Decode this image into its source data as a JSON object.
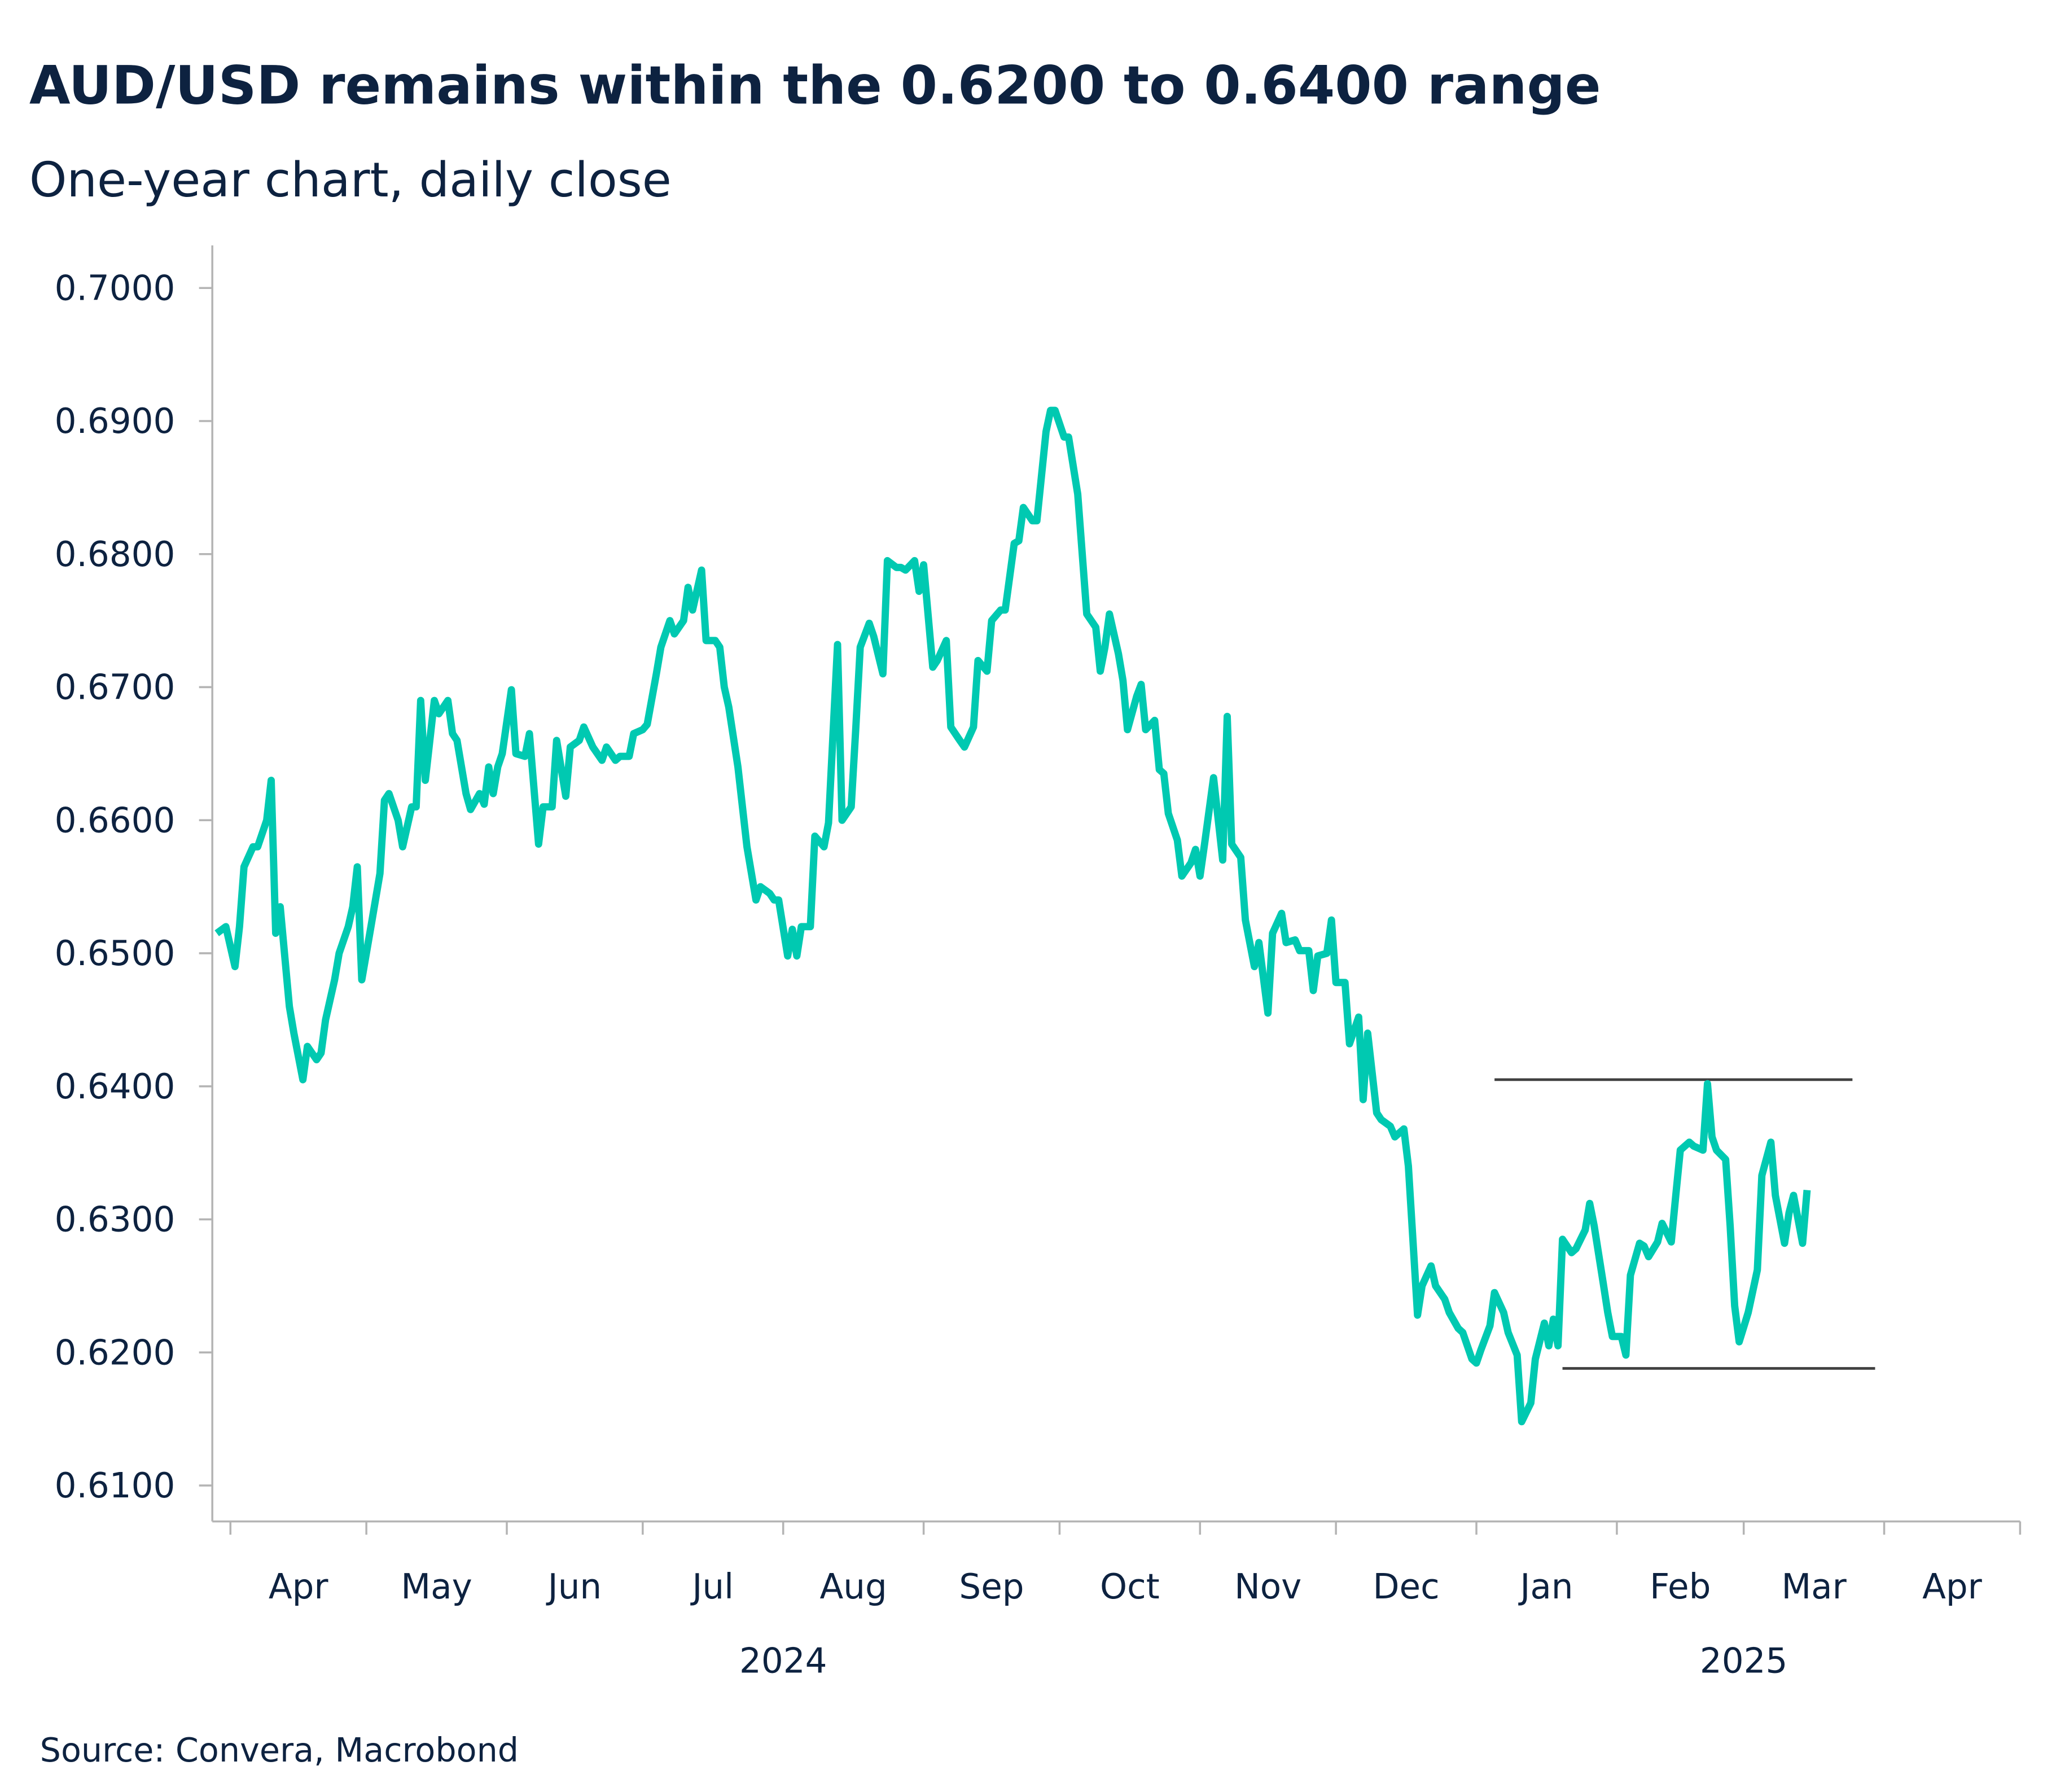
{
  "chart_data": {
    "type": "line",
    "title": "AUD/USD remains within the 0.6200 to 0.6400 range",
    "subtitle": "One-year chart, daily close",
    "source": "Source: Convera, Macrobond",
    "xlim": [
      "2024-03-28",
      "2025-05-01"
    ],
    "ylim": [
      0.6073,
      0.7032
    ],
    "y_ticks": [
      "0.6100",
      "0.6200",
      "0.6300",
      "0.6400",
      "0.6500",
      "0.6600",
      "0.6700",
      "0.6800",
      "0.6900",
      "0.7000"
    ],
    "x_month_labels": [
      {
        "label": "Apr",
        "month": "2024-04"
      },
      {
        "label": "May",
        "month": "2024-05"
      },
      {
        "label": "Jun",
        "month": "2024-06"
      },
      {
        "label": "Jul",
        "month": "2024-07"
      },
      {
        "label": "Aug",
        "month": "2024-08"
      },
      {
        "label": "Sep",
        "month": "2024-09"
      },
      {
        "label": "Oct",
        "month": "2024-10"
      },
      {
        "label": "Nov",
        "month": "2024-11"
      },
      {
        "label": "Dec",
        "month": "2024-12"
      },
      {
        "label": "Jan",
        "month": "2025-01"
      },
      {
        "label": "Feb",
        "month": "2025-02"
      },
      {
        "label": "Mar",
        "month": "2025-03"
      },
      {
        "label": "Apr",
        "month": "2025-04"
      }
    ],
    "x_year_labels": [
      {
        "label": "2024",
        "at": "2024-08-01"
      },
      {
        "label": "2025",
        "at": "2025-03-01"
      }
    ],
    "grid": false,
    "legend": "none",
    "colors": {
      "series": "#00c9b1",
      "range_lines": "#404040",
      "axis": "#b4b4b4",
      "text": "#0d2240"
    },
    "range_lines": [
      {
        "value": 0.6405,
        "from": "2025-01-05",
        "to": "2025-03-25"
      },
      {
        "value": 0.6188,
        "from": "2025-01-20",
        "to": "2025-03-30"
      }
    ],
    "points": [
      [
        "2024-03-29",
        0.6515
      ],
      [
        "2024-03-31",
        0.652
      ],
      [
        "2024-04-02",
        0.649
      ],
      [
        "2024-04-03",
        0.652
      ],
      [
        "2024-04-04",
        0.6565
      ],
      [
        "2024-04-06",
        0.658
      ],
      [
        "2024-04-07",
        0.658
      ],
      [
        "2024-04-09",
        0.66
      ],
      [
        "2024-04-10",
        0.663
      ],
      [
        "2024-04-11",
        0.6515
      ],
      [
        "2024-04-12",
        0.6535
      ],
      [
        "2024-04-14",
        0.646
      ],
      [
        "2024-04-15",
        0.644
      ],
      [
        "2024-04-17",
        0.6405
      ],
      [
        "2024-04-18",
        0.643
      ],
      [
        "2024-04-20",
        0.642
      ],
      [
        "2024-04-21",
        0.6425
      ],
      [
        "2024-04-22",
        0.645
      ],
      [
        "2024-04-24",
        0.648
      ],
      [
        "2024-04-25",
        0.65
      ],
      [
        "2024-04-27",
        0.652
      ],
      [
        "2024-04-28",
        0.6535
      ],
      [
        "2024-04-29",
        0.6565
      ],
      [
        "2024-04-30",
        0.648
      ],
      [
        "2024-05-02",
        0.652
      ],
      [
        "2024-05-04",
        0.656
      ],
      [
        "2024-05-05",
        0.6615
      ],
      [
        "2024-05-06",
        0.662
      ],
      [
        "2024-05-08",
        0.66
      ],
      [
        "2024-05-09",
        0.658
      ],
      [
        "2024-05-11",
        0.661
      ],
      [
        "2024-05-12",
        0.661
      ],
      [
        "2024-05-13",
        0.669
      ],
      [
        "2024-05-14",
        0.663
      ],
      [
        "2024-05-16",
        0.669
      ],
      [
        "2024-05-17",
        0.668
      ],
      [
        "2024-05-19",
        0.669
      ],
      [
        "2024-05-20",
        0.6665
      ],
      [
        "2024-05-21",
        0.666
      ],
      [
        "2024-05-23",
        0.662
      ],
      [
        "2024-05-24",
        0.6608
      ],
      [
        "2024-05-26",
        0.662
      ],
      [
        "2024-05-27",
        0.6612
      ],
      [
        "2024-05-28",
        0.664
      ],
      [
        "2024-05-29",
        0.662
      ],
      [
        "2024-05-30",
        0.664
      ],
      [
        "2024-05-31",
        0.665
      ],
      [
        "2024-06-02",
        0.6698
      ],
      [
        "2024-06-03",
        0.665
      ],
      [
        "2024-06-05",
        0.6648
      ],
      [
        "2024-06-06",
        0.6665
      ],
      [
        "2024-06-08",
        0.6582
      ],
      [
        "2024-06-09",
        0.661
      ],
      [
        "2024-06-11",
        0.661
      ],
      [
        "2024-06-12",
        0.666
      ],
      [
        "2024-06-14",
        0.6618
      ],
      [
        "2024-06-15",
        0.6655
      ],
      [
        "2024-06-17",
        0.666
      ],
      [
        "2024-06-18",
        0.667
      ],
      [
        "2024-06-20",
        0.6655
      ],
      [
        "2024-06-22",
        0.6645
      ],
      [
        "2024-06-23",
        0.6655
      ],
      [
        "2024-06-25",
        0.6645
      ],
      [
        "2024-06-26",
        0.6648
      ],
      [
        "2024-06-28",
        0.6648
      ],
      [
        "2024-06-29",
        0.6665
      ],
      [
        "2024-07-01",
        0.6668
      ],
      [
        "2024-07-02",
        0.6672
      ],
      [
        "2024-07-04",
        0.671
      ],
      [
        "2024-07-05",
        0.673
      ],
      [
        "2024-07-07",
        0.675
      ],
      [
        "2024-07-08",
        0.674
      ],
      [
        "2024-07-10",
        0.675
      ],
      [
        "2024-07-11",
        0.6775
      ],
      [
        "2024-07-12",
        0.6758
      ],
      [
        "2024-07-14",
        0.6788
      ],
      [
        "2024-07-15",
        0.6735
      ],
      [
        "2024-07-17",
        0.6735
      ],
      [
        "2024-07-18",
        0.673
      ],
      [
        "2024-07-19",
        0.67
      ],
      [
        "2024-07-20",
        0.6685
      ],
      [
        "2024-07-22",
        0.664
      ],
      [
        "2024-07-23",
        0.661
      ],
      [
        "2024-07-24",
        0.658
      ],
      [
        "2024-07-26",
        0.654
      ],
      [
        "2024-07-27",
        0.655
      ],
      [
        "2024-07-29",
        0.6545
      ],
      [
        "2024-07-30",
        0.654
      ],
      [
        "2024-07-31",
        0.654
      ],
      [
        "2024-08-02",
        0.6498
      ],
      [
        "2024-08-03",
        0.6518
      ],
      [
        "2024-08-04",
        0.6498
      ],
      [
        "2024-08-05",
        0.652
      ],
      [
        "2024-08-07",
        0.652
      ],
      [
        "2024-08-08",
        0.6588
      ],
      [
        "2024-08-10",
        0.658
      ],
      [
        "2024-08-11",
        0.6598
      ],
      [
        "2024-08-13",
        0.6732
      ],
      [
        "2024-08-14",
        0.66
      ],
      [
        "2024-08-16",
        0.661
      ],
      [
        "2024-08-17",
        0.6668
      ],
      [
        "2024-08-18",
        0.673
      ],
      [
        "2024-08-20",
        0.6748
      ],
      [
        "2024-08-21",
        0.6738
      ],
      [
        "2024-08-23",
        0.671
      ],
      [
        "2024-08-24",
        0.6795
      ],
      [
        "2024-08-26",
        0.679
      ],
      [
        "2024-08-27",
        0.679
      ],
      [
        "2024-08-28",
        0.6788
      ],
      [
        "2024-08-30",
        0.6795
      ],
      [
        "2024-08-31",
        0.6772
      ],
      [
        "2024-09-01",
        0.6792
      ],
      [
        "2024-09-03",
        0.6715
      ],
      [
        "2024-09-04",
        0.672
      ],
      [
        "2024-09-06",
        0.6735
      ],
      [
        "2024-09-07",
        0.667
      ],
      [
        "2024-09-09",
        0.666
      ],
      [
        "2024-09-10",
        0.6655
      ],
      [
        "2024-09-12",
        0.667
      ],
      [
        "2024-09-13",
        0.672
      ],
      [
        "2024-09-15",
        0.6712
      ],
      [
        "2024-09-16",
        0.675
      ],
      [
        "2024-09-18",
        0.6758
      ],
      [
        "2024-09-19",
        0.6758
      ],
      [
        "2024-09-21",
        0.6808
      ],
      [
        "2024-09-22",
        0.681
      ],
      [
        "2024-09-23",
        0.6835
      ],
      [
        "2024-09-25",
        0.6825
      ],
      [
        "2024-09-26",
        0.6825
      ],
      [
        "2024-09-28",
        0.6892
      ],
      [
        "2024-09-29",
        0.6908
      ],
      [
        "2024-09-30",
        0.6908
      ],
      [
        "2024-10-02",
        0.6888
      ],
      [
        "2024-10-03",
        0.6888
      ],
      [
        "2024-10-05",
        0.6845
      ],
      [
        "2024-10-06",
        0.68
      ],
      [
        "2024-10-07",
        0.6755
      ],
      [
        "2024-10-09",
        0.6745
      ],
      [
        "2024-10-10",
        0.6712
      ],
      [
        "2024-10-11",
        0.673
      ],
      [
        "2024-10-12",
        0.6755
      ],
      [
        "2024-10-14",
        0.6725
      ],
      [
        "2024-10-15",
        0.6705
      ],
      [
        "2024-10-16",
        0.6668
      ],
      [
        "2024-10-18",
        0.6693
      ],
      [
        "2024-10-19",
        0.6702
      ],
      [
        "2024-10-20",
        0.6668
      ],
      [
        "2024-10-22",
        0.6675
      ],
      [
        "2024-10-23",
        0.6638
      ],
      [
        "2024-10-24",
        0.6635
      ],
      [
        "2024-10-25",
        0.6605
      ],
      [
        "2024-10-27",
        0.6585
      ],
      [
        "2024-10-28",
        0.6558
      ],
      [
        "2024-10-30",
        0.6568
      ],
      [
        "2024-10-31",
        0.6578
      ],
      [
        "2024-11-01",
        0.6558
      ],
      [
        "2024-11-02",
        0.6582
      ],
      [
        "2024-11-04",
        0.6632
      ],
      [
        "2024-11-06",
        0.657
      ],
      [
        "2024-11-07",
        0.6678
      ],
      [
        "2024-11-08",
        0.6582
      ],
      [
        "2024-11-10",
        0.6572
      ],
      [
        "2024-11-11",
        0.6525
      ],
      [
        "2024-11-13",
        0.649
      ],
      [
        "2024-11-14",
        0.6508
      ],
      [
        "2024-11-16",
        0.6455
      ],
      [
        "2024-11-17",
        0.6515
      ],
      [
        "2024-11-19",
        0.653
      ],
      [
        "2024-11-20",
        0.6508
      ],
      [
        "2024-11-22",
        0.651
      ],
      [
        "2024-11-23",
        0.6502
      ],
      [
        "2024-11-25",
        0.6502
      ],
      [
        "2024-11-26",
        0.6472
      ],
      [
        "2024-11-27",
        0.6498
      ],
      [
        "2024-11-29",
        0.65
      ],
      [
        "2024-11-30",
        0.6525
      ],
      [
        "2024-12-01",
        0.6478
      ],
      [
        "2024-12-03",
        0.6478
      ],
      [
        "2024-12-04",
        0.6432
      ],
      [
        "2024-12-06",
        0.6452
      ],
      [
        "2024-12-07",
        0.639
      ],
      [
        "2024-12-08",
        0.644
      ],
      [
        "2024-12-10",
        0.638
      ],
      [
        "2024-12-11",
        0.6375
      ],
      [
        "2024-12-13",
        0.637
      ],
      [
        "2024-12-14",
        0.6362
      ],
      [
        "2024-12-16",
        0.6368
      ],
      [
        "2024-12-17",
        0.634
      ],
      [
        "2024-12-19",
        0.6228
      ],
      [
        "2024-12-20",
        0.625
      ],
      [
        "2024-12-22",
        0.6265
      ],
      [
        "2024-12-23",
        0.625
      ],
      [
        "2024-12-25",
        0.624
      ],
      [
        "2024-12-26",
        0.623
      ],
      [
        "2024-12-28",
        0.6218
      ],
      [
        "2024-12-29",
        0.6215
      ],
      [
        "2024-12-31",
        0.6195
      ],
      [
        "2025-01-01",
        0.6192
      ],
      [
        "2025-01-02",
        0.6202
      ],
      [
        "2025-01-04",
        0.622
      ],
      [
        "2025-01-05",
        0.6245
      ],
      [
        "2025-01-07",
        0.623
      ],
      [
        "2025-01-08",
        0.6215
      ],
      [
        "2025-01-10",
        0.6198
      ],
      [
        "2025-01-11",
        0.6148
      ],
      [
        "2025-01-13",
        0.6162
      ],
      [
        "2025-01-14",
        0.6195
      ],
      [
        "2025-01-16",
        0.6222
      ],
      [
        "2025-01-17",
        0.6205
      ],
      [
        "2025-01-18",
        0.6225
      ],
      [
        "2025-01-19",
        0.6205
      ],
      [
        "2025-01-20",
        0.6285
      ],
      [
        "2025-01-22",
        0.6275
      ],
      [
        "2025-01-23",
        0.6278
      ],
      [
        "2025-01-25",
        0.6292
      ],
      [
        "2025-01-26",
        0.6312
      ],
      [
        "2025-01-27",
        0.6295
      ],
      [
        "2025-01-29",
        0.6252
      ],
      [
        "2025-01-30",
        0.623
      ],
      [
        "2025-01-31",
        0.6212
      ],
      [
        "2025-02-02",
        0.6212
      ],
      [
        "2025-02-03",
        0.6198
      ],
      [
        "2025-02-04",
        0.6258
      ],
      [
        "2025-02-06",
        0.6282
      ],
      [
        "2025-02-07",
        0.628
      ],
      [
        "2025-02-08",
        0.6272
      ],
      [
        "2025-02-10",
        0.6283
      ],
      [
        "2025-02-11",
        0.6297
      ],
      [
        "2025-02-13",
        0.6283
      ],
      [
        "2025-02-14",
        0.6318
      ],
      [
        "2025-02-15",
        0.6352
      ],
      [
        "2025-02-17",
        0.6358
      ],
      [
        "2025-02-18",
        0.6355
      ],
      [
        "2025-02-20",
        0.6352
      ],
      [
        "2025-02-21",
        0.6402
      ],
      [
        "2025-02-22",
        0.6362
      ],
      [
        "2025-02-23",
        0.6352
      ],
      [
        "2025-02-25",
        0.6345
      ],
      [
        "2025-02-26",
        0.6295
      ],
      [
        "2025-02-27",
        0.6235
      ],
      [
        "2025-02-28",
        0.6208
      ],
      [
        "2025-03-02",
        0.623
      ],
      [
        "2025-03-04",
        0.6262
      ],
      [
        "2025-03-05",
        0.6333
      ],
      [
        "2025-03-07",
        0.6358
      ],
      [
        "2025-03-08",
        0.6318
      ],
      [
        "2025-03-10",
        0.6282
      ],
      [
        "2025-03-11",
        0.6305
      ],
      [
        "2025-03-12",
        0.6318
      ],
      [
        "2025-03-14",
        0.6282
      ],
      [
        "2025-03-15",
        0.6322
      ]
    ]
  }
}
